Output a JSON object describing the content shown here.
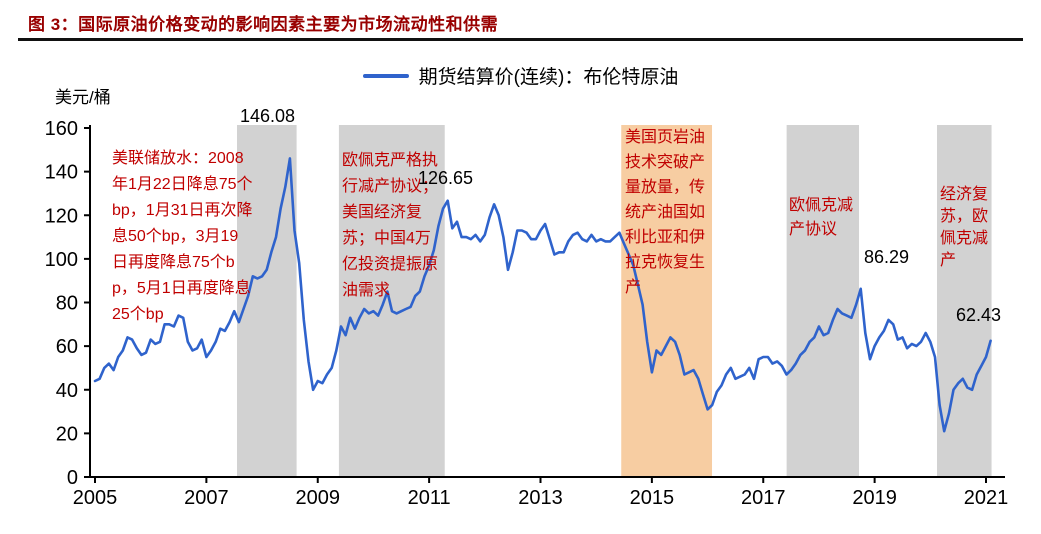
{
  "title": "图 3：国际原油价格变动的影响因素主要为市场流动性和供需",
  "colors": {
    "title_red": "#990000",
    "annotation_red": "#c00000",
    "line_blue": "#2f63cc",
    "band_gray": "#d2d2d2",
    "band_orange": "#f7cda2",
    "axis_black": "#000000"
  },
  "annotations": {
    "fed_easing": "美联储放水：2008年1月22日降息75个bp，1月31日再次降息50个bp，3月19日再度降息75个bp，5月1日再度降息25个bp",
    "opec_2009": "欧佩克严格执行减产协议；美国经济复苏；中国4万亿投资提振原油需求",
    "shale_2014": "美国页岩油技术突破产量放量，传统产油国如利比亚和伊拉克恢复生产",
    "opec_2017": "欧佩克减产协议",
    "recovery_2020": "经济复苏，欧佩克减产"
  },
  "chart_data": {
    "type": "line",
    "title": "图 3：国际原油价格变动的影响因素主要为市场流动性和供需",
    "xlabel": "",
    "ylabel": "美元/桶",
    "ylim": [
      0,
      160
    ],
    "y_ticks": [
      0,
      20,
      40,
      60,
      80,
      100,
      120,
      140,
      160
    ],
    "x_ticks": [
      2005,
      2007,
      2009,
      2011,
      2013,
      2015,
      2017,
      2019,
      2021
    ],
    "xlim": [
      2005,
      2021.2
    ],
    "grid": false,
    "legend_position": "top-center",
    "series": [
      {
        "name": "期货结算价(连续)：布伦特原油",
        "color": "#2f63cc",
        "x_start": 2005.0,
        "x_step": 0.08333,
        "values": [
          44,
          45,
          50,
          52,
          49,
          55,
          58,
          64,
          63,
          59,
          56,
          57,
          63,
          61,
          62,
          70,
          70,
          69,
          74,
          73,
          62,
          58,
          59,
          63,
          55,
          58,
          62,
          68,
          67,
          71,
          76,
          71,
          77,
          83,
          92,
          91,
          92,
          95,
          103,
          110,
          123,
          133,
          146.08,
          113,
          98,
          72,
          53,
          40,
          44,
          43,
          47,
          50,
          58,
          69,
          65,
          73,
          68,
          73,
          77,
          75,
          76,
          74,
          79,
          85,
          76,
          75,
          76,
          77,
          78,
          83,
          85,
          92,
          97,
          104,
          115,
          123,
          126.65,
          114,
          117,
          110,
          110,
          109,
          111,
          108,
          111,
          119,
          125,
          120,
          110,
          95,
          103,
          113,
          113,
          112,
          109,
          109,
          113,
          116,
          109,
          102,
          103,
          103,
          108,
          111,
          112,
          109,
          108,
          111,
          108,
          109,
          108,
          108,
          110,
          112,
          107,
          102,
          97,
          88,
          79,
          62,
          48,
          58,
          56,
          60,
          64,
          62,
          56,
          47,
          48,
          49,
          45,
          38,
          31,
          33,
          39,
          42,
          47,
          50,
          45,
          46,
          47,
          50,
          45,
          54,
          55,
          55,
          52,
          53,
          51,
          47,
          49,
          52,
          56,
          58,
          62,
          64,
          69,
          65,
          66,
          72,
          77,
          75,
          74,
          73,
          79,
          86.29,
          66,
          54,
          60,
          64,
          67,
          72,
          70,
          63,
          64,
          59,
          61,
          60,
          62,
          66,
          62,
          55,
          33,
          21,
          29,
          40,
          43,
          45,
          41,
          40,
          47,
          51,
          55,
          62.43
        ]
      }
    ],
    "bands": [
      {
        "x_from": 2007.55,
        "x_to": 2008.62,
        "color": "#d2d2d2"
      },
      {
        "x_from": 2009.38,
        "x_to": 2011.28,
        "color": "#d2d2d2"
      },
      {
        "x_from": 2014.45,
        "x_to": 2016.08,
        "color": "#f7cda2"
      },
      {
        "x_from": 2017.42,
        "x_to": 2018.72,
        "color": "#d2d2d2"
      },
      {
        "x_from": 2020.12,
        "x_to": 2021.1,
        "color": "#d2d2d2"
      }
    ],
    "point_labels": [
      {
        "text": "146.08",
        "x": 2008.5,
        "y": 146.08
      },
      {
        "text": "126.65",
        "x": 2011.4,
        "y": 126.65
      },
      {
        "text": "86.29",
        "x": 2018.8,
        "y": 86.29
      },
      {
        "text": "62.43",
        "x": 2021.1,
        "y": 62.43
      }
    ]
  }
}
